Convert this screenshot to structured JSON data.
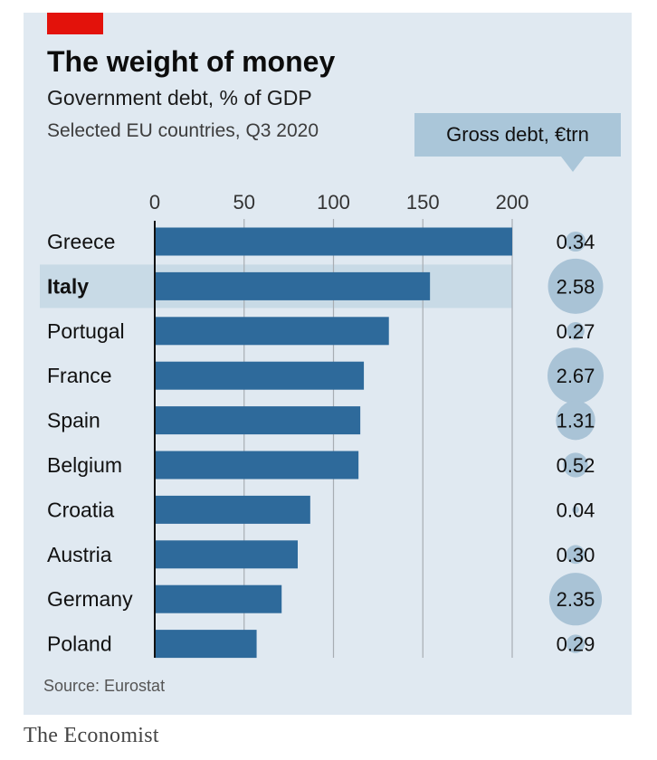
{
  "header": {
    "title": "The weight of money",
    "subtitle": "Government debt, % of GDP",
    "subtitle2": "Selected EU countries, Q3 2020",
    "gross_debt_label": "Gross debt, €trn"
  },
  "source": "Source: Eurostat",
  "brand": "The Economist",
  "colors": {
    "bar": "#2e6a9b",
    "highlight_row": "#c8dae6",
    "bubble": "#a9c3d6",
    "grid": "#a8adb3",
    "accent": "#e3120b"
  },
  "chart_data": {
    "type": "bar",
    "orientation": "horizontal",
    "categories": [
      "Greece",
      "Italy",
      "Portugal",
      "France",
      "Spain",
      "Belgium",
      "Croatia",
      "Austria",
      "Germany",
      "Poland"
    ],
    "series": [
      {
        "values": [
          200,
          154,
          131,
          117,
          115,
          114,
          87,
          80,
          71,
          57
        ]
      }
    ],
    "highlight": "Italy",
    "xlim": [
      0,
      200
    ],
    "x_ticks": [
      0,
      50,
      100,
      150,
      200
    ],
    "grid": true,
    "gross_debt_trn": [
      "0.34",
      "2.58",
      "0.27",
      "2.67",
      "1.31",
      "0.52",
      "0.04",
      "0.30",
      "2.35",
      "0.29"
    ]
  }
}
